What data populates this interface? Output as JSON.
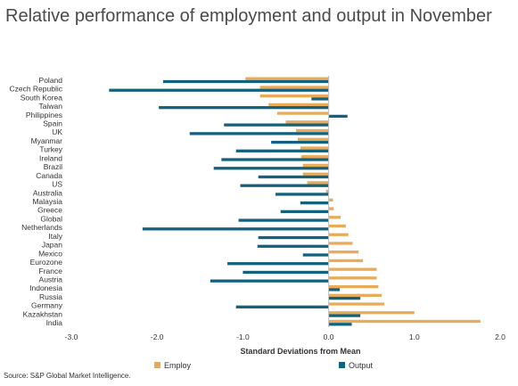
{
  "title": "Relative performance of employment and output in November",
  "source": "Source: S&P Global Market Intelligence.",
  "colors": {
    "employ": "#e8ab5a",
    "output": "#14617e",
    "axis": "#bfbfbf",
    "text": "#333333"
  },
  "chart_data": {
    "type": "bar",
    "orientation": "horizontal",
    "xlabel": "Standard Deviations from Mean",
    "xlim": [
      -3.0,
      2.0
    ],
    "xticks": [
      -3.0,
      -2.0,
      -1.0,
      0.0,
      1.0,
      2.0
    ],
    "xtick_labels": [
      "-3.0",
      "-2.0",
      "-1.0",
      "0.0",
      "1.0",
      "2.0"
    ],
    "grid": false,
    "legend_position": "bottom",
    "categories": [
      "Poland",
      "Czech Republic",
      "South Korea",
      "Taiwan",
      "Philippines",
      "Spain",
      "UK",
      "Myanmar",
      "Turkey",
      "Ireland",
      "Brazil",
      "Canada",
      "US",
      "Australia",
      "Malaysia",
      "Greece",
      "Global",
      "Netherlands",
      "Italy",
      "Japan",
      "Mexico",
      "Eurozone",
      "France",
      "Austria",
      "Indonesia",
      "Russia",
      "Germany",
      "Kazakhstan",
      "India"
    ],
    "series": [
      {
        "name": "Employ",
        "color": "#e8ab5a",
        "values": [
          -0.97,
          -0.8,
          -0.8,
          -0.7,
          -0.6,
          -0.5,
          -0.38,
          -0.36,
          -0.33,
          -0.32,
          -0.3,
          -0.3,
          -0.25,
          -0.03,
          0.05,
          0.06,
          0.14,
          0.2,
          0.23,
          0.28,
          0.35,
          0.4,
          0.56,
          0.56,
          0.58,
          0.62,
          0.65,
          1.0,
          1.77
        ]
      },
      {
        "name": "Output",
        "color": "#14617e",
        "values": [
          -1.93,
          -2.56,
          -0.2,
          -1.98,
          0.22,
          -1.22,
          -1.62,
          -0.67,
          -1.08,
          -1.25,
          -1.34,
          -0.82,
          -1.03,
          -0.62,
          -0.33,
          -0.56,
          -1.05,
          -2.17,
          -0.82,
          -0.83,
          -0.3,
          -1.18,
          -1.0,
          -1.38,
          0.13,
          0.37,
          -1.08,
          0.37,
          0.27
        ]
      }
    ]
  }
}
